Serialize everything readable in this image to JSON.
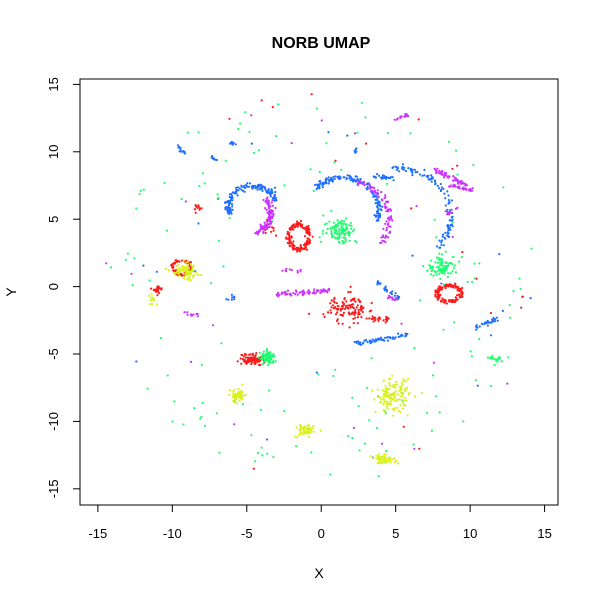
{
  "chart_data": {
    "type": "scatter",
    "title": "NORB UMAP",
    "xlabel": "X",
    "ylabel": "Y",
    "xlim": [
      -16.2,
      15.9
    ],
    "ylim": [
      -16.2,
      15.4
    ],
    "xticks": [
      -15,
      -10,
      -5,
      0,
      5,
      10,
      15
    ],
    "yticks": [
      -15,
      -10,
      -5,
      0,
      5,
      10,
      15
    ],
    "xtick_labels": [
      "-15",
      "-10",
      "-5",
      "0",
      "5",
      "10",
      "15"
    ],
    "ytick_labels": [
      "-15",
      "-10",
      "-5",
      "0",
      "5",
      "10",
      "15"
    ],
    "grid": false,
    "legend": "none",
    "colors": {
      "red": "#ff1a1a",
      "blue": "#1e6fff",
      "magenta": "#cc33ff",
      "green": "#1aff6e",
      "yellow": "#d9f21a"
    },
    "clusters": [
      {
        "color": "red",
        "shape": "ring",
        "cx": -1.5,
        "cy": 3.7,
        "rx": 0.7,
        "ry": 0.9,
        "n": 150
      },
      {
        "color": "red",
        "shape": "ring",
        "cx": 8.6,
        "cy": -0.5,
        "rx": 0.8,
        "ry": 0.6,
        "n": 140
      },
      {
        "color": "red",
        "shape": "ring",
        "cx": -9.4,
        "cy": 1.4,
        "rx": 0.6,
        "ry": 0.5,
        "n": 80
      },
      {
        "color": "red",
        "shape": "blob",
        "cx": 1.8,
        "cy": -1.6,
        "rx": 1.3,
        "ry": 1.0,
        "n": 120
      },
      {
        "color": "red",
        "shape": "blob",
        "cx": -4.6,
        "cy": -5.4,
        "rx": 0.9,
        "ry": 0.4,
        "n": 110
      },
      {
        "color": "red",
        "shape": "blob",
        "cx": -11.0,
        "cy": -0.2,
        "rx": 0.3,
        "ry": 0.3,
        "n": 30
      },
      {
        "color": "red",
        "shape": "blob",
        "cx": -8.3,
        "cy": 5.8,
        "rx": 0.3,
        "ry": 0.3,
        "n": 12
      },
      {
        "color": "red",
        "shape": "blob",
        "cx": -3.4,
        "cy": 4.4,
        "rx": 0.5,
        "ry": 0.5,
        "n": 14
      },
      {
        "color": "red",
        "shape": "blob",
        "cx": 4.0,
        "cy": -2.4,
        "rx": 0.8,
        "ry": 0.2,
        "n": 25
      },
      {
        "color": "blue",
        "shape": "arc",
        "cx": -4.6,
        "cy": 5.9,
        "r": 1.6,
        "a0": 15,
        "a1": 200,
        "n": 140
      },
      {
        "color": "blue",
        "shape": "arc",
        "cx": 1.5,
        "cy": 5.7,
        "r": 2.4,
        "a0": -20,
        "a1": 140,
        "n": 150
      },
      {
        "color": "blue",
        "shape": "arc",
        "cx": 5.1,
        "cy": 5.2,
        "r": 3.6,
        "a0": -40,
        "a1": 95,
        "n": 110
      },
      {
        "color": "blue",
        "shape": "line",
        "x0": 2.4,
        "y0": -4.2,
        "x1": 5.8,
        "y1": -3.6,
        "n": 60
      },
      {
        "color": "blue",
        "shape": "line",
        "x0": 10.4,
        "y0": -3.0,
        "x1": 11.8,
        "y1": -2.4,
        "n": 30
      },
      {
        "color": "blue",
        "shape": "line",
        "x0": 3.8,
        "y0": 0.3,
        "x1": 5.2,
        "y1": -0.9,
        "n": 30
      },
      {
        "color": "blue",
        "shape": "line",
        "x0": 3.6,
        "y0": 8.2,
        "x1": 4.9,
        "y1": 8.0,
        "n": 25
      },
      {
        "color": "blue",
        "shape": "line",
        "x0": -9.6,
        "y0": 10.4,
        "x1": -9.1,
        "y1": 9.8,
        "n": 12
      },
      {
        "color": "blue",
        "shape": "line",
        "x0": -7.3,
        "y0": 9.7,
        "x1": -7.0,
        "y1": 9.2,
        "n": 8
      },
      {
        "color": "blue",
        "shape": "line",
        "x0": -6.1,
        "y0": 10.7,
        "x1": -5.7,
        "y1": 10.6,
        "n": 8
      },
      {
        "color": "blue",
        "shape": "line",
        "x0": -6.3,
        "y0": -1.0,
        "x1": -5.9,
        "y1": -0.8,
        "n": 8
      },
      {
        "color": "blue",
        "shape": "line",
        "x0": 2.2,
        "y0": 10.2,
        "x1": 2.5,
        "y1": 10.1,
        "n": 6
      },
      {
        "color": "magenta",
        "shape": "arc",
        "cx": -5.0,
        "cy": 5.5,
        "r": 1.6,
        "a0": -70,
        "a1": 40,
        "n": 110
      },
      {
        "color": "magenta",
        "shape": "arc",
        "cx": 1.8,
        "cy": 5.0,
        "r": 2.8,
        "a0": -40,
        "a1": 80,
        "n": 90
      },
      {
        "color": "magenta",
        "shape": "line",
        "x0": -3.0,
        "y0": -0.6,
        "x1": 0.6,
        "y1": -0.3,
        "n": 70
      },
      {
        "color": "magenta",
        "shape": "line",
        "x0": 7.6,
        "y0": 8.7,
        "x1": 9.7,
        "y1": 7.5,
        "n": 55
      },
      {
        "color": "magenta",
        "shape": "line",
        "x0": 8.4,
        "y0": 7.6,
        "x1": 10.2,
        "y1": 7.1,
        "n": 30
      },
      {
        "color": "magenta",
        "shape": "line",
        "x0": 5.0,
        "y0": 12.4,
        "x1": 5.9,
        "y1": 12.8,
        "n": 14
      },
      {
        "color": "magenta",
        "shape": "line",
        "x0": 8.4,
        "y0": 5.4,
        "x1": 9.2,
        "y1": 5.8,
        "n": 12
      },
      {
        "color": "magenta",
        "shape": "line",
        "x0": 4.6,
        "y0": -0.7,
        "x1": 5.2,
        "y1": -1.1,
        "n": 12
      },
      {
        "color": "magenta",
        "shape": "line",
        "x0": -2.5,
        "y0": 1.2,
        "x1": -1.2,
        "y1": 1.2,
        "n": 10
      },
      {
        "color": "magenta",
        "shape": "line",
        "x0": -9.2,
        "y0": -2.0,
        "x1": -8.2,
        "y1": -2.2,
        "n": 10
      },
      {
        "color": "green",
        "shape": "blob",
        "cx": 1.3,
        "cy": 4.2,
        "rx": 1.1,
        "ry": 1.0,
        "n": 110
      },
      {
        "color": "green",
        "shape": "blob",
        "cx": 8.2,
        "cy": 1.5,
        "rx": 1.0,
        "ry": 0.8,
        "n": 90
      },
      {
        "color": "green",
        "shape": "blob",
        "cx": -3.6,
        "cy": -5.3,
        "rx": 0.5,
        "ry": 0.5,
        "n": 80
      },
      {
        "color": "green",
        "shape": "blob",
        "cx": 11.8,
        "cy": -5.4,
        "rx": 0.4,
        "ry": 0.3,
        "n": 18
      },
      {
        "color": "yellow",
        "shape": "blob",
        "cx": 4.8,
        "cy": -8.1,
        "rx": 1.1,
        "ry": 1.2,
        "n": 140
      },
      {
        "color": "yellow",
        "shape": "blob",
        "cx": -9.1,
        "cy": 1.1,
        "rx": 0.9,
        "ry": 0.6,
        "n": 70
      },
      {
        "color": "yellow",
        "shape": "blob",
        "cx": -5.6,
        "cy": -8.1,
        "rx": 0.5,
        "ry": 0.5,
        "n": 55
      },
      {
        "color": "yellow",
        "shape": "blob",
        "cx": -1.1,
        "cy": -10.7,
        "rx": 0.6,
        "ry": 0.5,
        "n": 60
      },
      {
        "color": "yellow",
        "shape": "blob",
        "cx": 4.2,
        "cy": -12.8,
        "rx": 0.8,
        "ry": 0.3,
        "n": 55
      },
      {
        "color": "yellow",
        "shape": "blob",
        "cx": -11.3,
        "cy": -1.0,
        "rx": 0.4,
        "ry": 0.4,
        "n": 15
      }
    ],
    "scatter_ring": {
      "r_min": 5.0,
      "r_max": 14.6,
      "n": 200,
      "color_weights": {
        "green": 0.7,
        "red": 0.1,
        "blue": 0.1,
        "magenta": 0.1
      }
    }
  }
}
